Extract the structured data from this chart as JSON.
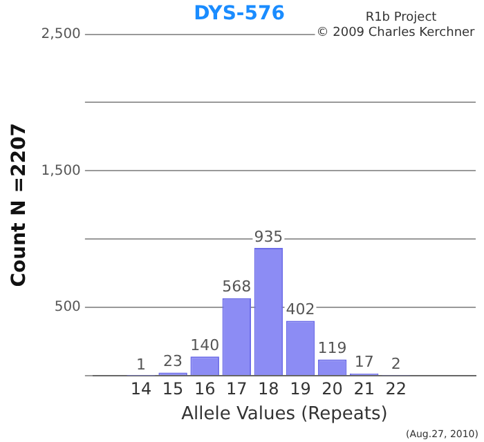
{
  "chart_data": {
    "type": "bar",
    "title": "DYS-576",
    "xlabel": "Allele Values (Repeats)",
    "ylabel": "Count N =2207",
    "categories": [
      null,
      "14",
      "15",
      "16",
      "17",
      "18",
      "19",
      "20",
      "21",
      "22",
      null,
      null
    ],
    "values": [
      null,
      1,
      23,
      140,
      568,
      935,
      402,
      119,
      17,
      2,
      null,
      null
    ],
    "color": "#8c8cf4",
    "ylim": [
      0,
      2500
    ],
    "yticks": [
      {
        "value": 0,
        "label": null
      },
      500,
      {
        "value": 1000,
        "label": null
      },
      {
        "value": 1500,
        "label": "1,500"
      },
      {
        "value": 2000,
        "label": null
      },
      {
        "value": 2500,
        "label": "2,500"
      }
    ],
    "grid": "y",
    "data_labels": true,
    "legend": false,
    "annotations": [
      "R1b Project",
      "© 2009 Charles Kerchner",
      "(Aug.27, 2010)"
    ]
  }
}
